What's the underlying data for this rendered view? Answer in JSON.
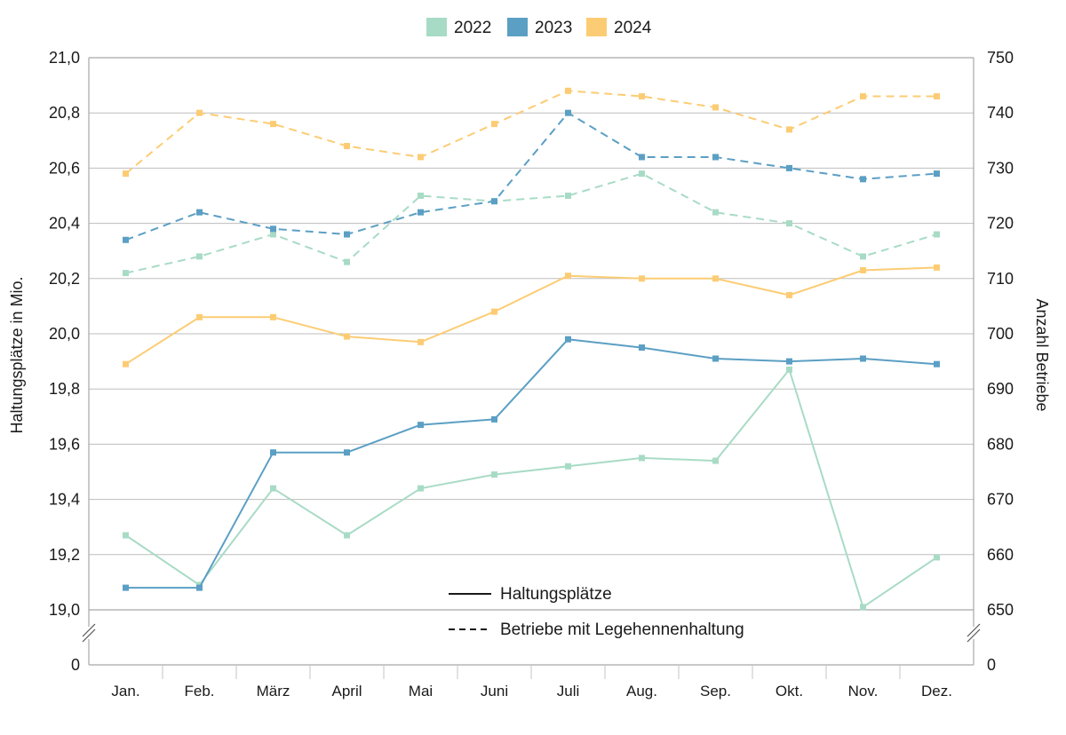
{
  "chart_data": {
    "type": "line",
    "categories": [
      "Jan.",
      "Feb.",
      "März",
      "April",
      "Mai",
      "Juni",
      "Juli",
      "Aug.",
      "Sep.",
      "Okt.",
      "Nov.",
      "Dez."
    ],
    "ylabel": "Haltungsplätze in Mio.",
    "y2label": "Anzahl Betriebe",
    "ylim": [
      19.0,
      21.0
    ],
    "y2lim": [
      650,
      750
    ],
    "axis_break": true,
    "axis_zero_label": "0",
    "axis2_zero_label": "0",
    "left_ticks": [
      "19,0",
      "19,2",
      "19,4",
      "19,6",
      "19,8",
      "20,0",
      "20,2",
      "20,4",
      "20,6",
      "20,8",
      "21,0"
    ],
    "right_ticks": [
      "650",
      "660",
      "670",
      "680",
      "690",
      "700",
      "710",
      "720",
      "730",
      "740",
      "750"
    ],
    "grid": true,
    "legend_position": "top-center",
    "years": [
      {
        "name": "2022",
        "color": "#a8dbc5"
      },
      {
        "name": "2023",
        "color": "#5b9fc4"
      },
      {
        "name": "2024",
        "color": "#fccc74"
      }
    ],
    "style_legend": [
      {
        "label": "Haltungsplätze",
        "style": "solid"
      },
      {
        "label": "Betriebe mit Legehennenhaltung",
        "style": "dashed"
      }
    ],
    "series": [
      {
        "year": "2022",
        "metric": "Haltungsplätze",
        "axis": "left",
        "style": "solid",
        "color": "#a8dbc5",
        "values": [
          19.27,
          19.09,
          19.44,
          19.27,
          19.44,
          19.49,
          19.52,
          19.55,
          19.54,
          19.87,
          19.01,
          19.19
        ]
      },
      {
        "year": "2023",
        "metric": "Haltungsplätze",
        "axis": "left",
        "style": "solid",
        "color": "#5b9fc4",
        "values": [
          19.08,
          19.08,
          19.57,
          19.57,
          19.67,
          19.69,
          19.98,
          19.95,
          19.91,
          19.9,
          19.91,
          19.89
        ]
      },
      {
        "year": "2024",
        "metric": "Haltungsplätze",
        "axis": "left",
        "style": "solid",
        "color": "#fccc74",
        "values": [
          19.89,
          20.06,
          20.06,
          19.99,
          19.97,
          20.08,
          20.21,
          20.2,
          20.2,
          20.14,
          20.23,
          20.24
        ]
      },
      {
        "year": "2022",
        "metric": "Betriebe mit Legehennenhaltung",
        "axis": "right",
        "style": "dashed",
        "color": "#a8dbc5",
        "values": [
          711,
          714,
          718,
          713,
          725,
          724,
          725,
          729,
          722,
          720,
          714,
          718
        ]
      },
      {
        "year": "2023",
        "metric": "Betriebe mit Legehennenhaltung",
        "axis": "right",
        "style": "dashed",
        "color": "#5b9fc4",
        "values": [
          717,
          722,
          719,
          718,
          722,
          724,
          740,
          732,
          732,
          730,
          728,
          729
        ]
      },
      {
        "year": "2024",
        "metric": "Betriebe mit Legehennenhaltung",
        "axis": "right",
        "style": "dashed",
        "color": "#fccc74",
        "values": [
          729,
          740,
          738,
          734,
          732,
          738,
          744,
          743,
          741,
          737,
          743,
          743
        ]
      }
    ]
  }
}
